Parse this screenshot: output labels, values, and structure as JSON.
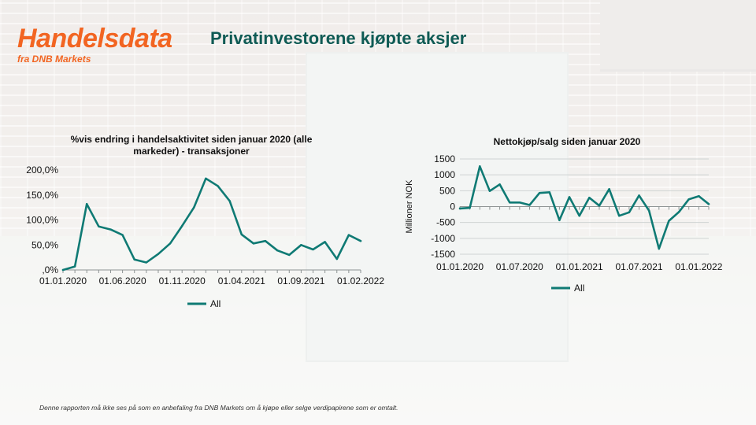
{
  "brand": {
    "title": "Handelsdata",
    "subtitle": "fra DNB Markets",
    "color": "#f26522"
  },
  "headline": "Privatinvestorene kjøpte aksjer",
  "disclaimer": "Denne rapporten må ikke ses på som en anbefaling fra DNB Markets om å kjøpe eller selge verdipapirene som er omtalt.",
  "chart_data": [
    {
      "type": "line",
      "title_lines": [
        "%vis  endring i handelsaktivitet siden januar 2020 (alle",
        "markeder) - transaksjoner"
      ],
      "ylim": [
        0,
        200
      ],
      "y_ticks": [
        0,
        50,
        100,
        150,
        200
      ],
      "y_tick_labels": [
        ",0%",
        "50,0%",
        "100,0%",
        "150,0%",
        "200,0%"
      ],
      "x_tick_labels": [
        "01.01.2020",
        "01.06.2020",
        "01.11.2020",
        "01.04.2021",
        "01.09.2021",
        "01.02.2022"
      ],
      "x_tick_indices": [
        0,
        5,
        10,
        15,
        20,
        25
      ],
      "legend_position": "bottom",
      "series": [
        {
          "name": "All",
          "color": "#0f7a74",
          "values": [
            0,
            7,
            132,
            87,
            81,
            70,
            21,
            15,
            32,
            53,
            88,
            125,
            183,
            168,
            138,
            71,
            53,
            58,
            39,
            30,
            50,
            41,
            56,
            22,
            70,
            58
          ]
        }
      ]
    },
    {
      "type": "line",
      "title": "Nettokjøp/salg  siden januar 2020",
      "ylabel": "Millioner NOK",
      "ylim": [
        -1500,
        1500
      ],
      "y_ticks": [
        -1500,
        -1000,
        -500,
        0,
        500,
        1000,
        1500
      ],
      "y_tick_labels": [
        "-1500",
        "-1000",
        "-500",
        "0",
        "500",
        "1000",
        "1500"
      ],
      "x_tick_labels": [
        "01.01.2020",
        "01.07.2020",
        "01.01.2021",
        "01.07.2021",
        "01.01.2022"
      ],
      "x_tick_indices": [
        0,
        6,
        12,
        18,
        24
      ],
      "legend_position": "bottom",
      "series": [
        {
          "name": "All",
          "color": "#0f7a74",
          "values": [
            -60,
            -40,
            1270,
            490,
            700,
            130,
            130,
            50,
            430,
            450,
            -430,
            300,
            -290,
            280,
            30,
            550,
            -290,
            -180,
            350,
            -130,
            -1330,
            -450,
            -170,
            230,
            330,
            80
          ]
        }
      ]
    }
  ]
}
